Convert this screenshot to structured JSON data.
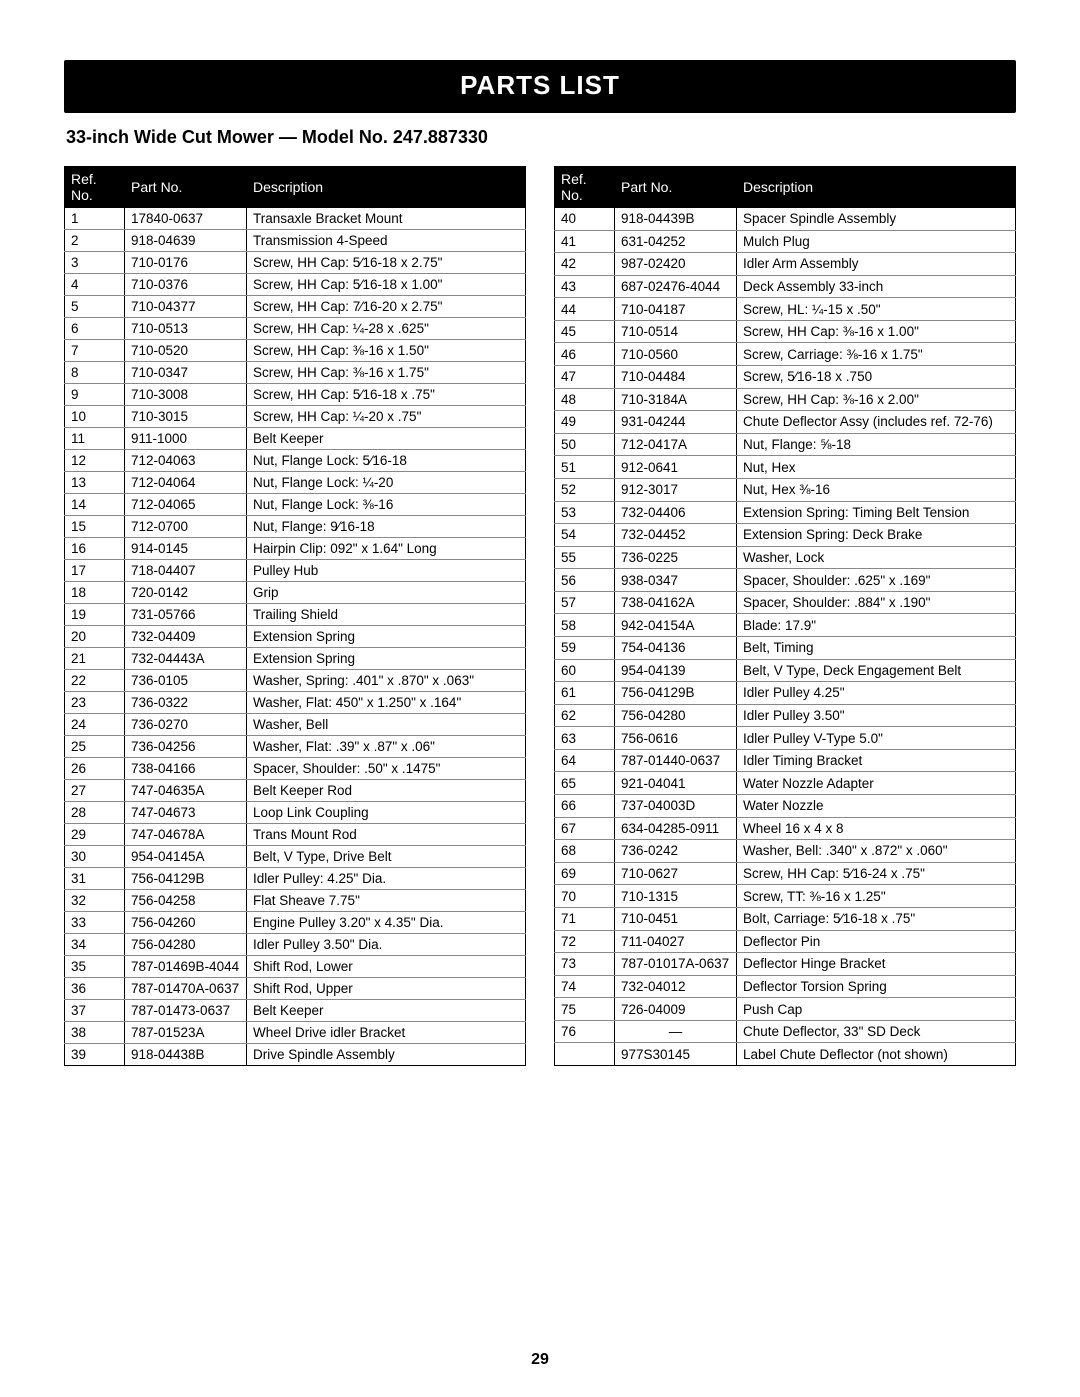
{
  "header": {
    "title": "PARTS LIST"
  },
  "subtitle": "33-inch Wide Cut Mower — Model No. 247.887330",
  "columns": {
    "ref": "Ref. No.",
    "part": "Part No.",
    "desc": "Description"
  },
  "page_number": "29",
  "style": {
    "header_bg": "#000000",
    "header_fg": "#ffffff",
    "row_border": "#888888",
    "outer_border": "#000000",
    "font_family": "Arial",
    "title_fontsize": 26,
    "subtitle_fontsize": 18,
    "body_fontsize": 13.5,
    "col_widths": {
      "ref": 60,
      "part": 122
    }
  },
  "left_rows": [
    {
      "ref": "1",
      "part": "17840-0637",
      "desc": "Transaxle Bracket Mount"
    },
    {
      "ref": "2",
      "part": "918-04639",
      "desc": "Transmission 4-Speed"
    },
    {
      "ref": "3",
      "part": "710-0176",
      "desc": "Screw, HH Cap: 5⁄16-18 x 2.75\""
    },
    {
      "ref": "4",
      "part": "710-0376",
      "desc": "Screw, HH Cap: 5⁄16-18 x 1.00\""
    },
    {
      "ref": "5",
      "part": "710-04377",
      "desc": "Screw, HH Cap: 7⁄16-20 x 2.75\""
    },
    {
      "ref": "6",
      "part": "710-0513",
      "desc": "Screw, HH Cap: ¼-28 x .625\""
    },
    {
      "ref": "7",
      "part": "710-0520",
      "desc": "Screw, HH Cap: ⅜-16 x 1.50\""
    },
    {
      "ref": "8",
      "part": "710-0347",
      "desc": "Screw, HH Cap: ⅜-16 x 1.75\""
    },
    {
      "ref": "9",
      "part": "710-3008",
      "desc": "Screw, HH Cap: 5⁄16-18 x .75\""
    },
    {
      "ref": "10",
      "part": "710-3015",
      "desc": "Screw, HH Cap: ¼-20 x .75\""
    },
    {
      "ref": "11",
      "part": "911-1000",
      "desc": "Belt Keeper"
    },
    {
      "ref": "12",
      "part": "712-04063",
      "desc": "Nut, Flange Lock: 5⁄16-18"
    },
    {
      "ref": "13",
      "part": "712-04064",
      "desc": "Nut, Flange Lock: ¼-20"
    },
    {
      "ref": "14",
      "part": "712-04065",
      "desc": "Nut, Flange Lock: ⅜-16"
    },
    {
      "ref": "15",
      "part": "712-0700",
      "desc": "Nut, Flange: 9⁄16-18"
    },
    {
      "ref": "16",
      "part": "914-0145",
      "desc": "Hairpin Clip: 092\" x 1.64\" Long"
    },
    {
      "ref": "17",
      "part": "718-04407",
      "desc": "Pulley Hub"
    },
    {
      "ref": "18",
      "part": "720-0142",
      "desc": "Grip"
    },
    {
      "ref": "19",
      "part": "731-05766",
      "desc": "Trailing Shield"
    },
    {
      "ref": "20",
      "part": "732-04409",
      "desc": "Extension Spring"
    },
    {
      "ref": "21",
      "part": "732-04443A",
      "desc": "Extension Spring"
    },
    {
      "ref": "22",
      "part": "736-0105",
      "desc": "Washer, Spring: .401\" x .870\" x .063\""
    },
    {
      "ref": "23",
      "part": "736-0322",
      "desc": "Washer, Flat: 450\" x 1.250\" x .164\""
    },
    {
      "ref": "24",
      "part": "736-0270",
      "desc": "Washer, Bell"
    },
    {
      "ref": "25",
      "part": "736-04256",
      "desc": "Washer, Flat: .39\" x .87\" x .06\""
    },
    {
      "ref": "26",
      "part": "738-04166",
      "desc": "Spacer, Shoulder: .50\" x .1475\""
    },
    {
      "ref": "27",
      "part": "747-04635A",
      "desc": "Belt Keeper Rod"
    },
    {
      "ref": "28",
      "part": "747-04673",
      "desc": "Loop Link Coupling"
    },
    {
      "ref": "29",
      "part": "747-04678A",
      "desc": "Trans Mount Rod"
    },
    {
      "ref": "30",
      "part": "954-04145A",
      "desc": "Belt, V Type, Drive Belt"
    },
    {
      "ref": "31",
      "part": "756-04129B",
      "desc": "Idler Pulley: 4.25\" Dia."
    },
    {
      "ref": "32",
      "part": "756-04258",
      "desc": "Flat Sheave 7.75\""
    },
    {
      "ref": "33",
      "part": "756-04260",
      "desc": "Engine Pulley 3.20\" x 4.35\" Dia."
    },
    {
      "ref": "34",
      "part": "756-04280",
      "desc": "Idler Pulley 3.50\" Dia."
    },
    {
      "ref": "35",
      "part": "787-01469B-4044",
      "desc": "Shift Rod, Lower"
    },
    {
      "ref": "36",
      "part": "787-01470A-0637",
      "desc": "Shift Rod, Upper"
    },
    {
      "ref": "37",
      "part": "787-01473-0637",
      "desc": "Belt Keeper"
    },
    {
      "ref": "38",
      "part": "787-01523A",
      "desc": "Wheel Drive idler Bracket"
    },
    {
      "ref": "39",
      "part": "918-04438B",
      "desc": "Drive Spindle Assembly"
    }
  ],
  "right_rows": [
    {
      "ref": "40",
      "part": "918-04439B",
      "desc": "Spacer Spindle Assembly"
    },
    {
      "ref": "41",
      "part": "631-04252",
      "desc": "Mulch Plug"
    },
    {
      "ref": "42",
      "part": "987-02420",
      "desc": "Idler Arm Assembly"
    },
    {
      "ref": "43",
      "part": "687-02476-4044",
      "desc": "Deck Assembly 33-inch"
    },
    {
      "ref": "44",
      "part": "710-04187",
      "desc": "Screw, HL: ¼-15 x .50\""
    },
    {
      "ref": "45",
      "part": "710-0514",
      "desc": "Screw, HH Cap: ⅜-16 x 1.00\""
    },
    {
      "ref": "46",
      "part": "710-0560",
      "desc": "Screw, Carriage: ⅜-16 x 1.75\""
    },
    {
      "ref": "47",
      "part": "710-04484",
      "desc": "Screw, 5⁄16-18 x .750"
    },
    {
      "ref": "48",
      "part": "710-3184A",
      "desc": "Screw, HH Cap: ⅜-16 x 2.00\""
    },
    {
      "ref": "49",
      "part": "931-04244",
      "desc": "Chute Deflector Assy (includes ref. 72-76)"
    },
    {
      "ref": "50",
      "part": "712-0417A",
      "desc": "Nut, Flange: ⅝-18"
    },
    {
      "ref": "51",
      "part": "912-0641",
      "desc": "Nut, Hex"
    },
    {
      "ref": "52",
      "part": "912-3017",
      "desc": "Nut, Hex ⅜-16"
    },
    {
      "ref": "53",
      "part": "732-04406",
      "desc": "Extension Spring: Timing Belt Tension"
    },
    {
      "ref": "54",
      "part": "732-04452",
      "desc": "Extension Spring: Deck Brake"
    },
    {
      "ref": "55",
      "part": "736-0225",
      "desc": "Washer, Lock"
    },
    {
      "ref": "56",
      "part": "938-0347",
      "desc": "Spacer, Shoulder: .625\" x .169\""
    },
    {
      "ref": "57",
      "part": "738-04162A",
      "desc": "Spacer, Shoulder: .884\" x .190\""
    },
    {
      "ref": "58",
      "part": "942-04154A",
      "desc": "Blade: 17.9\""
    },
    {
      "ref": "59",
      "part": "754-04136",
      "desc": "Belt, Timing"
    },
    {
      "ref": "60",
      "part": "954-04139",
      "desc": "Belt, V Type, Deck Engagement Belt"
    },
    {
      "ref": "61",
      "part": "756-04129B",
      "desc": "Idler Pulley 4.25\""
    },
    {
      "ref": "62",
      "part": "756-04280",
      "desc": "Idler Pulley 3.50\""
    },
    {
      "ref": "63",
      "part": "756-0616",
      "desc": "Idler Pulley V-Type 5.0\""
    },
    {
      "ref": "64",
      "part": "787-01440-0637",
      "desc": "Idler Timing Bracket"
    },
    {
      "ref": "65",
      "part": "921-04041",
      "desc": "Water Nozzle Adapter"
    },
    {
      "ref": "66",
      "part": "737-04003D",
      "desc": "Water Nozzle"
    },
    {
      "ref": "67",
      "part": "634-04285-0911",
      "desc": "Wheel 16 x 4 x 8"
    },
    {
      "ref": "68",
      "part": "736-0242",
      "desc": "Washer, Bell: .340\" x .872\" x .060\""
    },
    {
      "ref": "69",
      "part": "710-0627",
      "desc": "Screw, HH Cap: 5⁄16-24 x .75\""
    },
    {
      "ref": "70",
      "part": "710-1315",
      "desc": "Screw, TT: ⅜-16 x 1.25\""
    },
    {
      "ref": "71",
      "part": "710-0451",
      "desc": "Bolt, Carriage: 5⁄16-18 x .75\""
    },
    {
      "ref": "72",
      "part": "711-04027",
      "desc": "Deflector Pin"
    },
    {
      "ref": "73",
      "part": "787-01017A-0637",
      "desc": "Deflector Hinge Bracket"
    },
    {
      "ref": "74",
      "part": "732-04012",
      "desc": "Deflector Torsion Spring"
    },
    {
      "ref": "75",
      "part": "726-04009",
      "desc": "Push Cap"
    },
    {
      "ref": "76",
      "part": "—",
      "desc": "Chute Deflector, 33\" SD Deck"
    },
    {
      "ref": "",
      "part": "977S30145",
      "desc": "Label Chute Deflector (not shown)"
    }
  ]
}
